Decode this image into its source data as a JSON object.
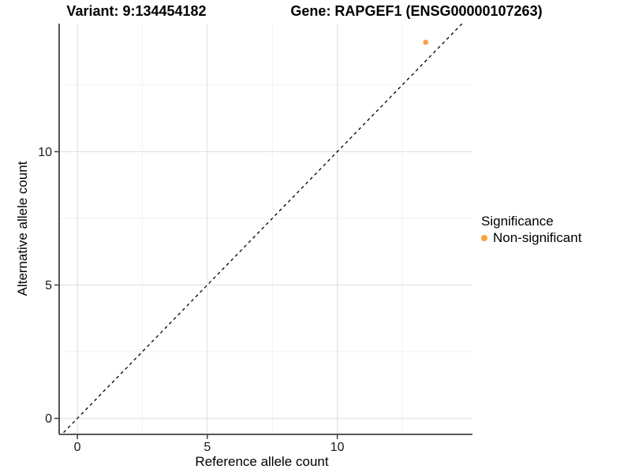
{
  "chart_data": {
    "type": "scatter",
    "titles": {
      "left": "Variant: 9:134454182",
      "right": "Gene: RAPGEF1 (ENSG00000107263)"
    },
    "xlabel": "Reference allele count",
    "ylabel": "Alternative allele count",
    "xlim": [
      -0.7,
      15.2
    ],
    "ylim": [
      -0.6,
      14.8
    ],
    "x_ticks": [
      0,
      5,
      10
    ],
    "y_ticks": [
      0,
      5,
      10
    ],
    "x_minor_ticks": [
      2.5,
      7.5,
      12.5
    ],
    "y_minor_ticks": [
      2.5,
      7.5,
      12.5
    ],
    "grid": "on",
    "reference_line": {
      "slope": 1,
      "intercept": 0,
      "style": "dashed",
      "color": "#000000"
    },
    "series": [
      {
        "name": "Non-significant",
        "color": "#F9A242",
        "points": [
          {
            "x": 13.4,
            "y": 14.1
          }
        ]
      }
    ],
    "legend": {
      "title": "Significance",
      "position": "right",
      "items": [
        {
          "label": "Non-significant",
          "color": "#F9A242"
        }
      ]
    }
  },
  "colors": {
    "background": "#FFFFFF",
    "axis_line": "#404040",
    "tick_label": "#1A1A1A",
    "grid_major": "#E4E4E4",
    "grid_minor": "#F1F1F1"
  }
}
